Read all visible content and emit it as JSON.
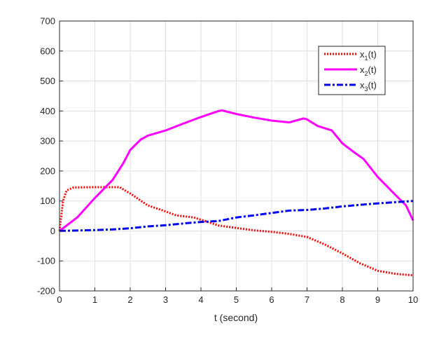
{
  "chart_data": {
    "type": "line",
    "title": "",
    "xlabel": "t (second)",
    "ylabel": "",
    "xlim": [
      0,
      10
    ],
    "ylim": [
      -200,
      700
    ],
    "xticks": [
      0,
      1,
      2,
      3,
      4,
      5,
      6,
      7,
      8,
      9,
      10
    ],
    "yticks": [
      -200,
      -100,
      0,
      100,
      200,
      300,
      400,
      500,
      600,
      700
    ],
    "grid": true,
    "legend_position": "top-right",
    "series": [
      {
        "name": "x",
        "sub": "1",
        "suffix": "(t)",
        "color": "#ff0000",
        "style": "dotted",
        "x": [
          0,
          0.1,
          0.2,
          0.4,
          1,
          1.7,
          2,
          2.5,
          3,
          3.3,
          3.8,
          4.5,
          5,
          5.5,
          6,
          6.5,
          7,
          7.5,
          8,
          8.5,
          9,
          9.5,
          10
        ],
        "y": [
          0,
          100,
          135,
          145,
          146,
          146,
          125,
          85,
          65,
          52,
          45,
          18,
          10,
          2,
          -3,
          -10,
          -20,
          -45,
          -75,
          -108,
          -133,
          -143,
          -148
        ]
      },
      {
        "name": "x",
        "sub": "2",
        "suffix": "(t)",
        "color": "#ff00ff",
        "style": "solid",
        "x": [
          0,
          0.5,
          1,
          1.5,
          1.8,
          2,
          2.3,
          2.5,
          3,
          3.5,
          4,
          4.5,
          4.6,
          5,
          5.5,
          6,
          6.5,
          6.9,
          7,
          7.3,
          7.7,
          8,
          8.3,
          8.6,
          9,
          9.5,
          9.8,
          10
        ],
        "y": [
          0,
          45,
          110,
          170,
          225,
          270,
          305,
          318,
          335,
          358,
          380,
          400,
          402,
          390,
          378,
          368,
          362,
          375,
          372,
          350,
          335,
          292,
          265,
          240,
          180,
          120,
          85,
          35
        ]
      },
      {
        "name": "x",
        "sub": "3",
        "suffix": "(t)",
        "color": "#0000ff",
        "style": "dashdot",
        "x": [
          0,
          1,
          1.5,
          2,
          2.5,
          3,
          3.5,
          4,
          4.5,
          5,
          5.5,
          6,
          6.5,
          7,
          7.5,
          8,
          8.5,
          9,
          9.5,
          10
        ],
        "y": [
          0,
          3,
          5,
          9,
          15,
          19,
          25,
          30,
          33,
          45,
          52,
          60,
          68,
          70,
          75,
          82,
          87,
          92,
          96,
          100
        ]
      }
    ]
  }
}
